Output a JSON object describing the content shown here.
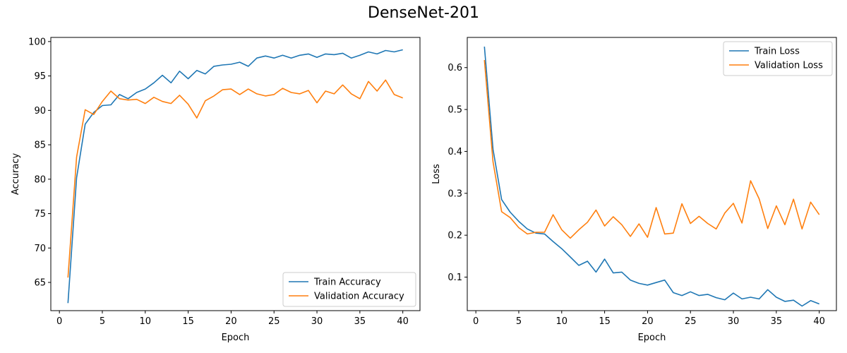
{
  "figure": {
    "title": "DenseNet-201"
  },
  "chart_data": [
    {
      "type": "line",
      "xlabel": "Epoch",
      "ylabel": "Accuracy",
      "xlim": [
        -1,
        42
      ],
      "ylim": [
        60.9,
        100.6
      ],
      "xticks": [
        0,
        5,
        10,
        15,
        20,
        25,
        30,
        35,
        40
      ],
      "yticks": [
        65,
        70,
        75,
        80,
        85,
        90,
        95,
        100
      ],
      "legend_position": "lower-right",
      "grid": false,
      "x": [
        1,
        2,
        3,
        4,
        5,
        6,
        7,
        8,
        9,
        10,
        11,
        12,
        13,
        14,
        15,
        16,
        17,
        18,
        19,
        20,
        21,
        22,
        23,
        24,
        25,
        26,
        27,
        28,
        29,
        30,
        31,
        32,
        33,
        34,
        35,
        36,
        37,
        38,
        39,
        40
      ],
      "series": [
        {
          "name": "Train Accuracy",
          "color": "#1f77b4",
          "values": [
            62.0,
            80.2,
            88.0,
            89.7,
            90.7,
            90.8,
            92.3,
            91.7,
            92.6,
            93.1,
            94.0,
            95.1,
            94.0,
            95.7,
            94.6,
            95.8,
            95.3,
            96.4,
            96.6,
            96.7,
            97.0,
            96.4,
            97.6,
            97.9,
            97.6,
            98.0,
            97.6,
            98.0,
            98.2,
            97.7,
            98.2,
            98.1,
            98.3,
            97.6,
            98.0,
            98.5,
            98.2,
            98.7,
            98.5,
            98.8
          ]
        },
        {
          "name": "Validation Accuracy",
          "color": "#ff7f0e",
          "values": [
            65.7,
            83.2,
            90.1,
            89.4,
            91.3,
            92.8,
            91.7,
            91.5,
            91.6,
            91.0,
            91.9,
            91.3,
            91.0,
            92.2,
            90.9,
            88.9,
            91.4,
            92.1,
            93.0,
            93.1,
            92.3,
            93.1,
            92.4,
            92.1,
            92.3,
            93.2,
            92.6,
            92.4,
            92.9,
            91.1,
            92.8,
            92.4,
            93.7,
            92.4,
            91.7,
            94.2,
            92.8,
            94.4,
            92.3,
            91.8
          ]
        }
      ]
    },
    {
      "type": "line",
      "xlabel": "Epoch",
      "ylabel": "Loss",
      "xlim": [
        -1,
        42
      ],
      "ylim": [
        0.02,
        0.672
      ],
      "xticks": [
        0,
        5,
        10,
        15,
        20,
        25,
        30,
        35,
        40
      ],
      "yticks": [
        0.1,
        0.2,
        0.3,
        0.4,
        0.5,
        0.6
      ],
      "legend_position": "upper-right",
      "grid": false,
      "x": [
        1,
        2,
        3,
        4,
        5,
        6,
        7,
        8,
        9,
        10,
        11,
        12,
        13,
        14,
        15,
        16,
        17,
        18,
        19,
        20,
        21,
        22,
        23,
        24,
        25,
        26,
        27,
        28,
        29,
        30,
        31,
        32,
        33,
        34,
        35,
        36,
        37,
        38,
        39,
        40
      ],
      "series": [
        {
          "name": "Train Loss",
          "color": "#1f77b4",
          "values": [
            0.65,
            0.405,
            0.285,
            0.255,
            0.233,
            0.215,
            0.205,
            0.203,
            0.185,
            0.168,
            0.148,
            0.128,
            0.138,
            0.112,
            0.143,
            0.11,
            0.112,
            0.093,
            0.085,
            0.081,
            0.087,
            0.093,
            0.063,
            0.056,
            0.065,
            0.056,
            0.059,
            0.051,
            0.046,
            0.062,
            0.048,
            0.052,
            0.048,
            0.07,
            0.052,
            0.042,
            0.045,
            0.031,
            0.044,
            0.036
          ]
        },
        {
          "name": "Validation Loss",
          "color": "#ff7f0e",
          "values": [
            0.618,
            0.375,
            0.256,
            0.242,
            0.218,
            0.203,
            0.207,
            0.207,
            0.249,
            0.213,
            0.193,
            0.213,
            0.231,
            0.26,
            0.222,
            0.244,
            0.225,
            0.197,
            0.227,
            0.195,
            0.266,
            0.203,
            0.205,
            0.275,
            0.228,
            0.245,
            0.228,
            0.215,
            0.253,
            0.276,
            0.229,
            0.33,
            0.287,
            0.216,
            0.27,
            0.225,
            0.286,
            0.215,
            0.279,
            0.249
          ]
        }
      ]
    }
  ]
}
